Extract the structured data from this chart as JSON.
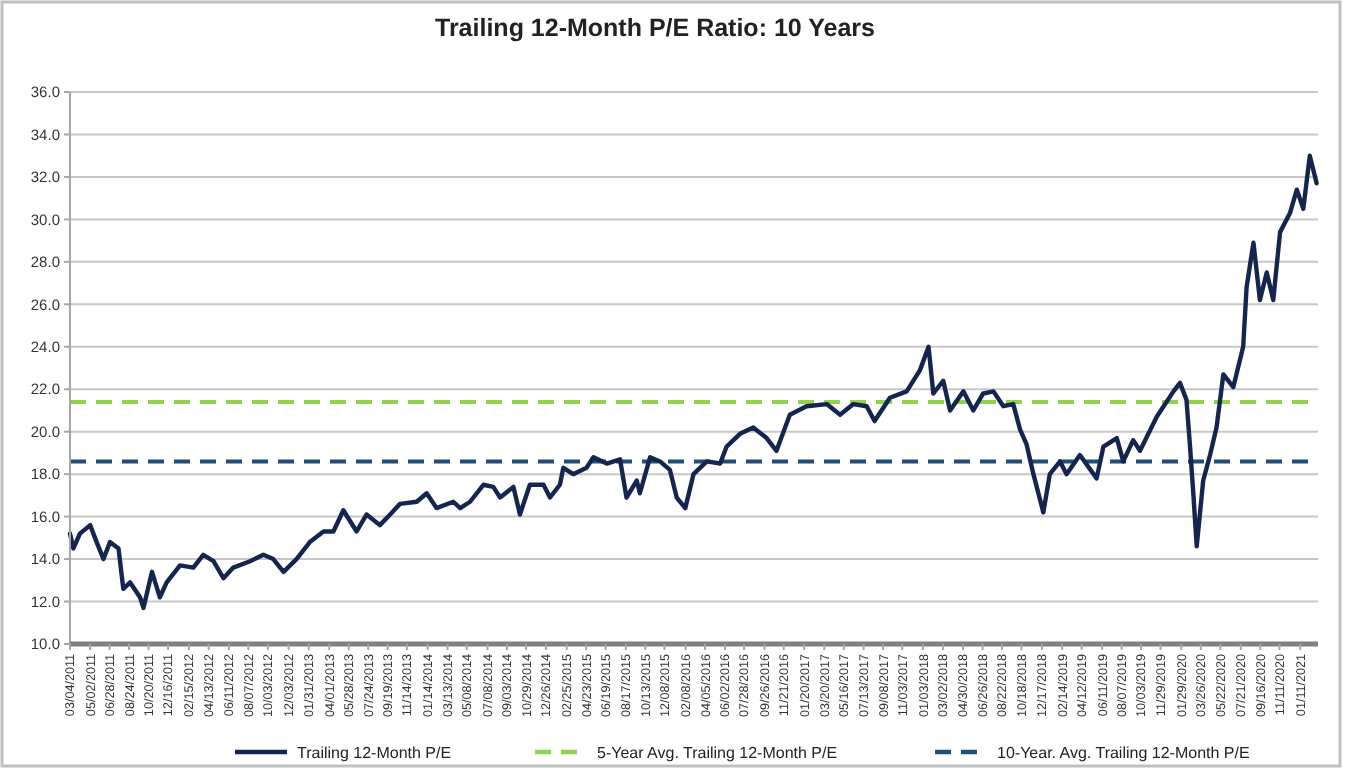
{
  "chart_data": {
    "type": "line",
    "title": "Trailing 12-Month P/E Ratio: 10 Years",
    "x": [
      "2011-03-04",
      "2011-03-14",
      "2011-04-02",
      "2011-05-02",
      "2011-05-21",
      "2011-06-10",
      "2011-06-29",
      "2011-07-24",
      "2011-08-07",
      "2011-08-27",
      "2011-09-25",
      "2011-10-05",
      "2011-10-30",
      "2011-11-22",
      "2011-12-12",
      "2012-01-20",
      "2012-02-28",
      "2012-03-28",
      "2012-04-27",
      "2012-05-26",
      "2012-06-24",
      "2012-08-12",
      "2012-09-20",
      "2012-10-19",
      "2012-11-18",
      "2012-12-26",
      "2013-02-03",
      "2013-03-15",
      "2013-04-13",
      "2013-05-12",
      "2013-06-20",
      "2013-07-19",
      "2013-08-27",
      "2013-09-26",
      "2013-10-25",
      "2013-12-13",
      "2014-01-11",
      "2014-02-09",
      "2014-03-30",
      "2014-04-19",
      "2014-05-18",
      "2014-06-26",
      "2014-07-25",
      "2014-08-14",
      "2014-09-22",
      "2014-10-11",
      "2014-11-09",
      "2014-12-19",
      "2015-01-07",
      "2015-02-05",
      "2015-02-15",
      "2015-03-16",
      "2015-04-24",
      "2015-05-14",
      "2015-06-22",
      "2015-07-31",
      "2015-08-19",
      "2015-09-18",
      "2015-09-27",
      "2015-10-27",
      "2015-11-25",
      "2015-12-24",
      "2016-01-13",
      "2016-02-07",
      "2016-03-02",
      "2016-04-10",
      "2016-05-19",
      "2016-06-07",
      "2016-07-16",
      "2016-08-24",
      "2016-10-02",
      "2016-10-31",
      "2016-12-09",
      "2017-01-27",
      "2017-03-27",
      "2017-05-05",
      "2017-06-13",
      "2017-07-22",
      "2017-08-14",
      "2017-09-28",
      "2017-11-16",
      "2017-12-25",
      "2018-01-19",
      "2018-02-02",
      "2018-03-03",
      "2018-03-23",
      "2018-05-01",
      "2018-05-30",
      "2018-06-28",
      "2018-07-28",
      "2018-08-26",
      "2018-09-24",
      "2018-10-14",
      "2018-11-02",
      "2018-11-22",
      "2018-12-21",
      "2019-01-09",
      "2019-02-08",
      "2019-02-27",
      "2019-04-07",
      "2019-05-26",
      "2019-06-15",
      "2019-07-24",
      "2019-08-12",
      "2019-09-10",
      "2019-09-30",
      "2019-11-18",
      "2020-01-06",
      "2020-01-25",
      "2020-02-13",
      "2020-02-23",
      "2020-03-04",
      "2020-03-14",
      "2020-04-02",
      "2020-04-22",
      "2020-05-11",
      "2020-05-31",
      "2020-06-29",
      "2020-07-28",
      "2020-08-07",
      "2020-08-27",
      "2020-09-15",
      "2020-10-05",
      "2020-10-24",
      "2020-11-13",
      "2020-12-12",
      "2021-01-01",
      "2021-01-20",
      "2021-02-08",
      "2021-02-28"
    ],
    "series": [
      {
        "name": "Trailing 12-Month P/E",
        "color": "#14254f",
        "values": [
          15.2,
          14.5,
          15.2,
          15.6,
          14.8,
          14.0,
          14.8,
          14.5,
          12.6,
          12.9,
          12.2,
          11.7,
          13.4,
          12.2,
          12.9,
          13.7,
          13.6,
          14.2,
          13.9,
          13.1,
          13.6,
          13.9,
          14.2,
          14.0,
          13.4,
          14.0,
          14.8,
          15.3,
          15.3,
          16.3,
          15.3,
          16.1,
          15.6,
          16.1,
          16.6,
          16.7,
          17.1,
          16.4,
          16.7,
          16.4,
          16.7,
          17.5,
          17.4,
          16.9,
          17.4,
          16.1,
          17.5,
          17.5,
          16.9,
          17.5,
          18.3,
          18.0,
          18.3,
          18.8,
          18.5,
          18.7,
          16.9,
          17.7,
          17.1,
          18.8,
          18.6,
          18.2,
          16.9,
          16.4,
          18.0,
          18.6,
          18.5,
          19.3,
          19.9,
          20.2,
          19.7,
          19.1,
          20.8,
          21.2,
          21.3,
          20.8,
          21.3,
          21.2,
          20.5,
          21.6,
          21.9,
          22.9,
          24.0,
          21.8,
          22.4,
          21.0,
          21.9,
          21.0,
          21.8,
          21.9,
          21.2,
          21.3,
          20.1,
          19.4,
          18.0,
          16.2,
          18.0,
          18.6,
          18.0,
          18.9,
          17.8,
          19.3,
          19.7,
          18.6,
          19.6,
          19.1,
          20.7,
          21.9,
          22.3,
          21.5,
          19.4,
          17.1,
          14.6,
          17.7,
          18.9,
          20.2,
          22.7,
          22.1,
          24.0,
          26.8,
          28.9,
          26.2,
          27.5,
          26.2,
          29.4,
          30.3,
          31.4,
          30.5,
          33.0,
          31.7
        ]
      }
    ],
    "ref_lines": [
      {
        "axis": "y",
        "value": 21.4,
        "label": "5-Year Avg. Trailing 12-Month P/E",
        "color": "#92d050",
        "line_style": "dashed"
      },
      {
        "axis": "y",
        "value": 18.6,
        "label": "10-Year. Avg. Trailing 12-Month P/E",
        "color": "#1f4e79",
        "line_style": "dashed"
      }
    ],
    "xlim": [
      "2011-03-04",
      "2021-03-04"
    ],
    "xticks": [
      {
        "value": "2011-03-04",
        "label": "03/04/2011"
      },
      {
        "value": "2011-05-02",
        "label": "05/02/2011"
      },
      {
        "value": "2011-06-28",
        "label": "06/28/2011"
      },
      {
        "value": "2011-08-24",
        "label": "08/24/2011"
      },
      {
        "value": "2011-10-20",
        "label": "10/20/2011"
      },
      {
        "value": "2011-12-16",
        "label": "12/16/2011"
      },
      {
        "value": "2012-02-15",
        "label": "02/15/2012"
      },
      {
        "value": "2012-04-13",
        "label": "04/13/2012"
      },
      {
        "value": "2012-06-11",
        "label": "06/11/2012"
      },
      {
        "value": "2012-08-07",
        "label": "08/07/2012"
      },
      {
        "value": "2012-10-03",
        "label": "10/03/2012"
      },
      {
        "value": "2012-12-03",
        "label": "12/03/2012"
      },
      {
        "value": "2013-01-31",
        "label": "01/31/2013"
      },
      {
        "value": "2013-04-01",
        "label": "04/01/2013"
      },
      {
        "value": "2013-05-28",
        "label": "05/28/2013"
      },
      {
        "value": "2013-07-24",
        "label": "07/24/2013"
      },
      {
        "value": "2013-09-19",
        "label": "09/19/2013"
      },
      {
        "value": "2013-11-14",
        "label": "11/14/2013"
      },
      {
        "value": "2014-01-14",
        "label": "01/14/2014"
      },
      {
        "value": "2014-03-13",
        "label": "03/13/2014"
      },
      {
        "value": "2014-05-08",
        "label": "05/08/2014"
      },
      {
        "value": "2014-07-08",
        "label": "07/08/2014"
      },
      {
        "value": "2014-09-03",
        "label": "09/03/2014"
      },
      {
        "value": "2014-10-29",
        "label": "10/29/2014"
      },
      {
        "value": "2014-12-26",
        "label": "12/26/2014"
      },
      {
        "value": "2015-02-25",
        "label": "02/25/2015"
      },
      {
        "value": "2015-04-23",
        "label": "04/23/2015"
      },
      {
        "value": "2015-06-19",
        "label": "06/19/2015"
      },
      {
        "value": "2015-08-17",
        "label": "08/17/2015"
      },
      {
        "value": "2015-10-13",
        "label": "10/13/2015"
      },
      {
        "value": "2015-12-08",
        "label": "12/08/2015"
      },
      {
        "value": "2016-02-08",
        "label": "02/08/2016"
      },
      {
        "value": "2016-04-05",
        "label": "04/05/2016"
      },
      {
        "value": "2016-06-02",
        "label": "06/02/2016"
      },
      {
        "value": "2016-07-28",
        "label": "07/28/2016"
      },
      {
        "value": "2016-09-26",
        "label": "09/26/2016"
      },
      {
        "value": "2016-11-21",
        "label": "11/21/2016"
      },
      {
        "value": "2017-01-20",
        "label": "01/20/2017"
      },
      {
        "value": "2017-03-20",
        "label": "03/20/2017"
      },
      {
        "value": "2017-05-16",
        "label": "05/16/2017"
      },
      {
        "value": "2017-07-13",
        "label": "07/13/2017"
      },
      {
        "value": "2017-09-08",
        "label": "09/08/2017"
      },
      {
        "value": "2017-11-03",
        "label": "11/03/2017"
      },
      {
        "value": "2018-01-03",
        "label": "01/03/2018"
      },
      {
        "value": "2018-03-02",
        "label": "03/02/2018"
      },
      {
        "value": "2018-04-30",
        "label": "04/30/2018"
      },
      {
        "value": "2018-06-26",
        "label": "06/26/2018"
      },
      {
        "value": "2018-08-22",
        "label": "08/22/2018"
      },
      {
        "value": "2018-10-18",
        "label": "10/18/2018"
      },
      {
        "value": "2018-12-17",
        "label": "12/17/2018"
      },
      {
        "value": "2019-02-14",
        "label": "02/14/2019"
      },
      {
        "value": "2019-04-12",
        "label": "04/12/2019"
      },
      {
        "value": "2019-06-11",
        "label": "06/11/2019"
      },
      {
        "value": "2019-08-07",
        "label": "08/07/2019"
      },
      {
        "value": "2019-10-03",
        "label": "10/03/2019"
      },
      {
        "value": "2019-11-29",
        "label": "11/29/2019"
      },
      {
        "value": "2020-01-29",
        "label": "01/29/2020"
      },
      {
        "value": "2020-03-26",
        "label": "03/26/2020"
      },
      {
        "value": "2020-05-22",
        "label": "05/22/2020"
      },
      {
        "value": "2020-07-21",
        "label": "07/21/2020"
      },
      {
        "value": "2020-09-16",
        "label": "09/16/2020"
      },
      {
        "value": "2020-11-11",
        "label": "11/11/2020"
      },
      {
        "value": "2021-01-11",
        "label": "01/11/2021"
      }
    ],
    "ylim": [
      10,
      36
    ],
    "yticks": [
      {
        "value": 10,
        "label": "10.0"
      },
      {
        "value": 12,
        "label": "12.0"
      },
      {
        "value": 14,
        "label": "14.0"
      },
      {
        "value": 16,
        "label": "16.0"
      },
      {
        "value": 18,
        "label": "18.0"
      },
      {
        "value": 20,
        "label": "20.0"
      },
      {
        "value": 22,
        "label": "22.0"
      },
      {
        "value": 24,
        "label": "24.0"
      },
      {
        "value": 26,
        "label": "26.0"
      },
      {
        "value": 28,
        "label": "28.0"
      },
      {
        "value": 30,
        "label": "30.0"
      },
      {
        "value": 32,
        "label": "32.0"
      },
      {
        "value": 34,
        "label": "34.0"
      },
      {
        "value": 36,
        "label": "36.0"
      }
    ],
    "grid": "y",
    "legend": "bottom",
    "marker": "none",
    "line_style": "solid"
  }
}
